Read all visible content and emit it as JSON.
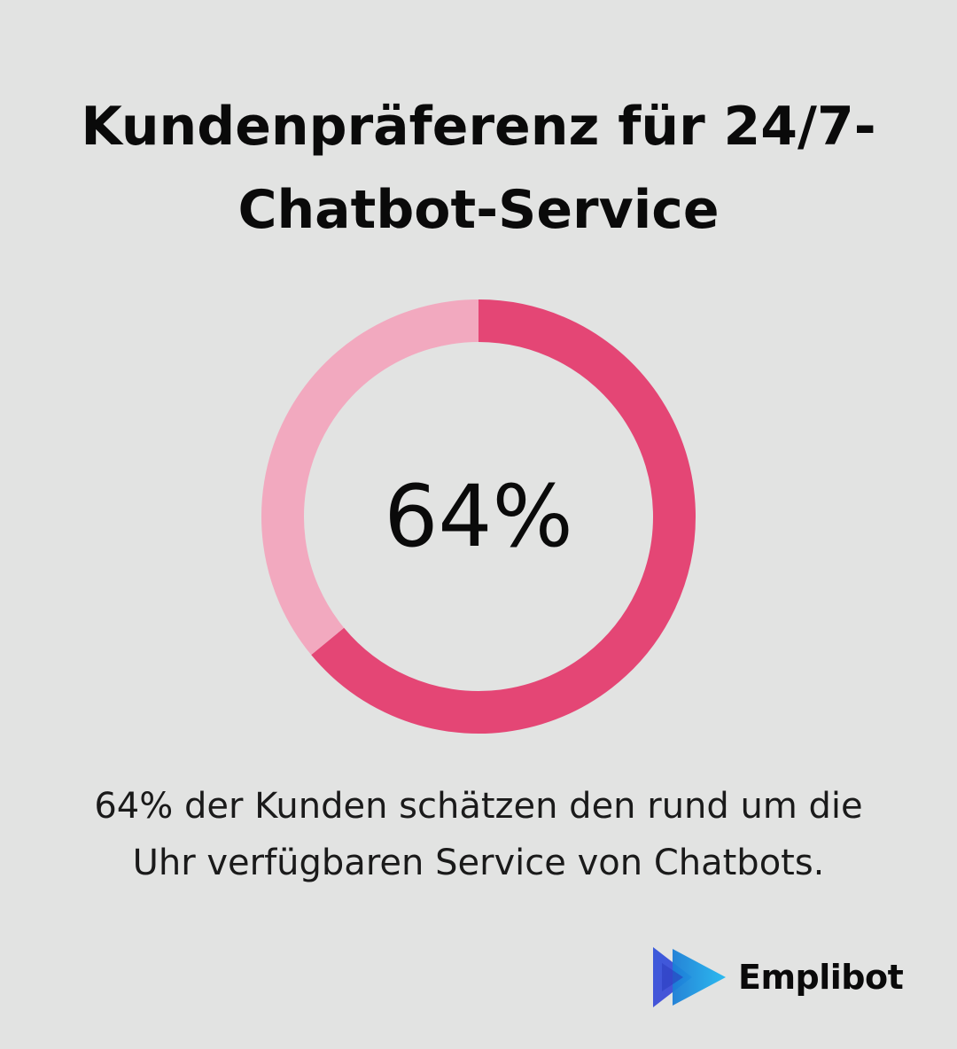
{
  "header": {
    "title_line1": "Kundenpräferenz für 24/7-",
    "title_line2": "Chatbot-Service"
  },
  "chart_data": {
    "type": "pie",
    "center_label": "64%",
    "slices": [
      {
        "value": 64,
        "color": "#e44675"
      },
      {
        "value": 36,
        "color": "#f2a9bf"
      }
    ]
  },
  "description": {
    "line1": "64% der Kunden schätzen den rund um die",
    "line2": "Uhr verfügbaren Service von Chatbots."
  },
  "brand": {
    "name": "Emplibot",
    "icon": "play-arrow-logo-icon"
  }
}
